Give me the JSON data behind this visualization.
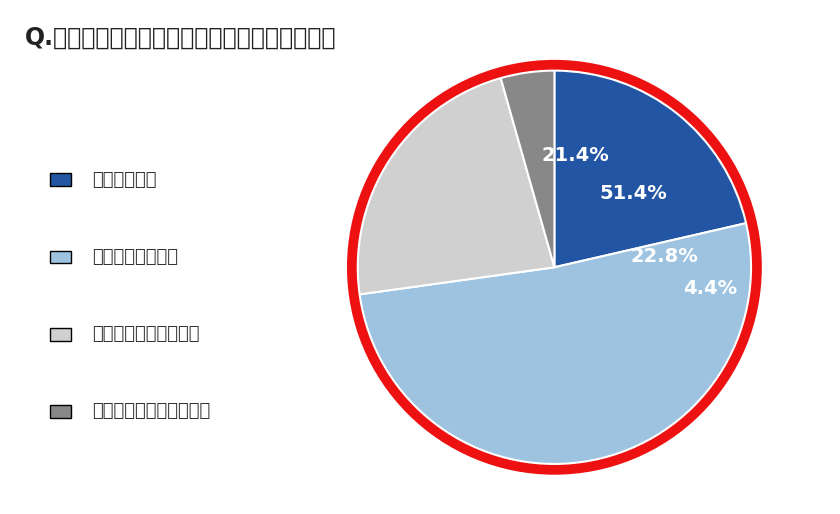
{
  "title": "Q.梅雨時期、食中毒対策を意識していますか。",
  "labels": [
    "意識している",
    "少し意識している",
    "あまり意識していない",
    "まったく意識していない"
  ],
  "values": [
    21.4,
    51.4,
    22.8,
    4.4
  ],
  "colors": [
    "#2255a4",
    "#9dc3e0",
    "#d0d0d0",
    "#888888"
  ],
  "pct_labels": [
    "21.4%",
    "51.4%",
    "22.8%",
    "4.4%"
  ],
  "border_color": "#ee1111",
  "background_color": "#ffffff",
  "title_fontsize": 17,
  "legend_fontsize": 13,
  "pct_fontsize": 14,
  "startangle": 90
}
